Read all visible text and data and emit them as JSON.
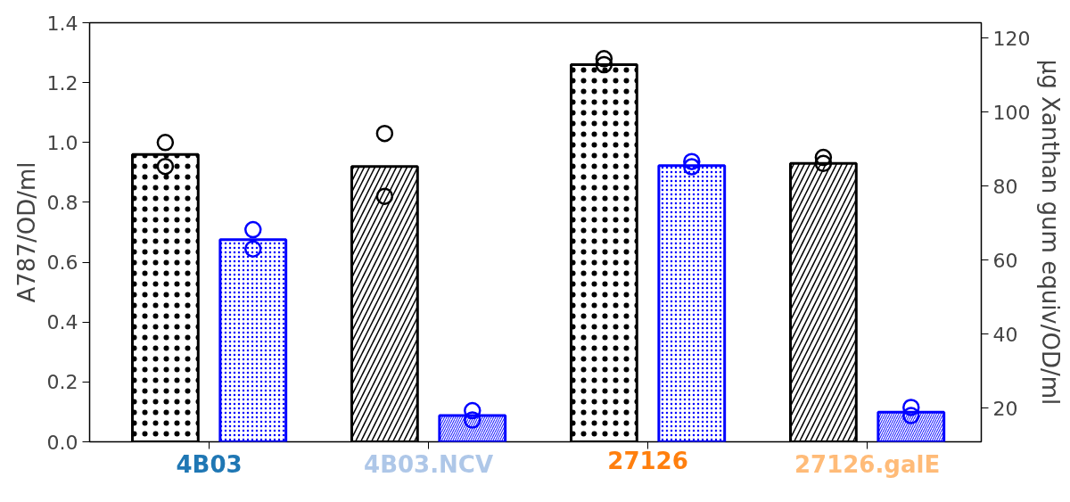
{
  "chart_data": {
    "type": "bar",
    "categories": [
      "4B03",
      "4B03.NCV",
      "27126",
      "27126.galE"
    ],
    "ylabel": "A787/OD/ml",
    "y2label": "µg Xanthan gum equiv/OD/ml",
    "ylim": [
      0,
      1.4
    ],
    "yticks": [
      {
        "value": 0,
        "label": "0.0"
      },
      {
        "value": 0.2,
        "label": "0.2"
      },
      {
        "value": 0.4,
        "label": "0.4"
      },
      {
        "value": 0.6,
        "label": "0.6"
      },
      {
        "value": 0.8,
        "label": "0.8"
      },
      {
        "value": 1.0,
        "label": "1.0"
      },
      {
        "value": 1.2,
        "label": "1.2"
      },
      {
        "value": 1.4,
        "label": "1.4"
      }
    ],
    "y2lim": [
      10.9,
      124.1
    ],
    "y2ticks": [
      20,
      40,
      60,
      80,
      100,
      120
    ],
    "grid": false,
    "series": [
      {
        "color": "#000000",
        "values": [
          0.96,
          0.92,
          1.26,
          0.93
        ]
      },
      {
        "axis": "y2",
        "color": "#0000ff",
        "values": [
          65.5,
          18.0,
          85.5,
          18.9
        ]
      },
      {
        "type": "scatter",
        "color": "#000000",
        "marker": "circle",
        "x": [
          "4B03",
          "4B03",
          "4B03.NCV",
          "4B03.NCV",
          "27126",
          "27126",
          "27126.galE",
          "27126.galE"
        ],
        "values": [
          1.0,
          0.92,
          1.03,
          0.82,
          1.28,
          1.26,
          0.95,
          0.93
        ]
      },
      {
        "type": "scatter",
        "axis": "y2",
        "color": "#0000ff",
        "marker": "circle",
        "x": [
          "4B03",
          "4B03",
          "4B03.NCV",
          "4B03.NCV",
          "27126",
          "27126",
          "27126.galE",
          "27126.galE"
        ],
        "values": [
          68.2,
          63.0,
          19.3,
          16.8,
          86.6,
          85.2,
          20.2,
          18.0
        ]
      }
    ]
  }
}
